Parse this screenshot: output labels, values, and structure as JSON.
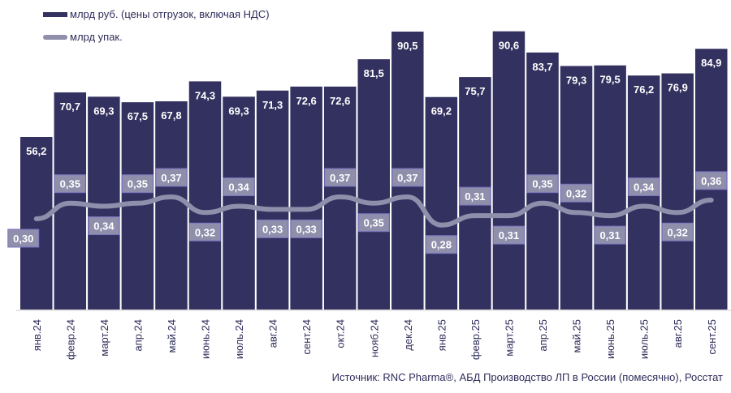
{
  "chart_data": {
    "type": "bar+line",
    "categories": [
      "янв.24",
      "февр.24",
      "март.24",
      "апр.24",
      "май.24",
      "июнь.24",
      "июль.24",
      "авг.24",
      "сент.24",
      "окт.24",
      "нояб.24",
      "дек.24",
      "янв.25",
      "февр.25",
      "март.25",
      "апр.25",
      "май.25",
      "июнь.25",
      "июль.25",
      "авг.25",
      "сент.25"
    ],
    "series": [
      {
        "name": "млрд руб. (цены отгрузок, включая НДС)",
        "type": "bar",
        "color": "#33315f",
        "values": [
          56.2,
          70.7,
          69.3,
          67.5,
          67.8,
          74.3,
          69.3,
          71.3,
          72.6,
          72.6,
          81.5,
          90.5,
          69.2,
          75.7,
          90.6,
          83.7,
          79.3,
          79.5,
          76.2,
          76.9,
          84.9
        ],
        "labels": [
          "56,2",
          "70,7",
          "69,3",
          "67,5",
          "67,8",
          "74,3",
          "69,3",
          "71,3",
          "72,6",
          "72,6",
          "81,5",
          "90,5",
          "69,2",
          "75,7",
          "90,6",
          "83,7",
          "79,3",
          "79,5",
          "76,2",
          "76,9",
          "84,9"
        ]
      },
      {
        "name": "млрд упак.",
        "type": "line",
        "color": "#8f8eab",
        "values": [
          0.3,
          0.35,
          0.34,
          0.35,
          0.37,
          0.32,
          0.34,
          0.33,
          0.33,
          0.37,
          0.35,
          0.37,
          0.28,
          0.31,
          0.31,
          0.35,
          0.32,
          0.31,
          0.34,
          0.32,
          0.36
        ],
        "labels": [
          "0,30",
          "0,35",
          "0,34",
          "0,35",
          "0,37",
          "0,32",
          "0,34",
          "0,33",
          "0,33",
          "0,37",
          "0,35",
          "0,37",
          "0,28",
          "0,31",
          "0,31",
          "0,35",
          "0,32",
          "0,31",
          "0,34",
          "0,32",
          "0,36"
        ]
      }
    ],
    "legend": "top-left",
    "grid": false
  },
  "source": "Источник: RNC Pharma®, АБД Производство ЛП в России (помесячно), Росстат"
}
